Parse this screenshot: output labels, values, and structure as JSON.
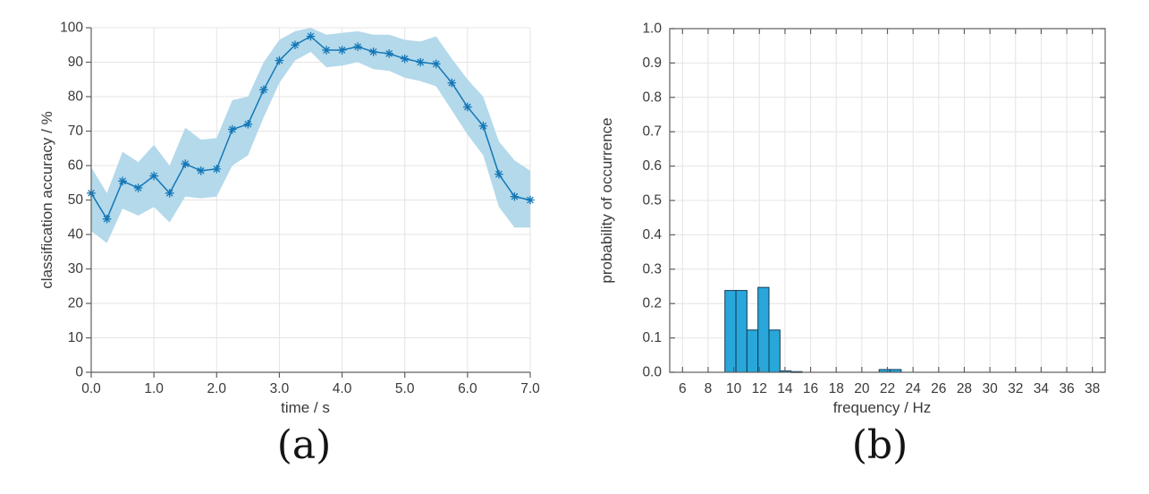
{
  "figure": {
    "background": "#ffffff",
    "captions": {
      "a": "(a)",
      "b": "(b)"
    }
  },
  "theme": {
    "axis_color": "#5f5f5f",
    "grid_color": "#e4e4e4",
    "tick_label_color": "#3a3a3a",
    "axis_label_color": "#3a3a3a"
  },
  "chart_data": [
    {
      "id": "a",
      "type": "line",
      "title": "",
      "xlabel": "time / s",
      "ylabel": "classification accuracy / %",
      "xlim": [
        0,
        7
      ],
      "ylim": [
        0,
        100
      ],
      "grid": true,
      "box": false,
      "marker": "asterisk",
      "line_color": "#1477b6",
      "band_color": "#b3d9eb",
      "xtick_values": [
        0,
        1,
        2,
        3,
        4,
        5,
        6,
        7
      ],
      "xtick_labels": [
        "0.0",
        "1.0",
        "2.0",
        "3.0",
        "4.0",
        "5.0",
        "6.0",
        "7.0"
      ],
      "ytick_values": [
        0,
        10,
        20,
        30,
        40,
        50,
        60,
        70,
        80,
        90,
        100
      ],
      "ytick_labels": [
        "0",
        "10",
        "20",
        "30",
        "40",
        "50",
        "60",
        "70",
        "80",
        "90",
        "100"
      ],
      "x": [
        0,
        0.25,
        0.5,
        0.75,
        1,
        1.25,
        1.5,
        1.75,
        2,
        2.25,
        2.5,
        2.75,
        3,
        3.25,
        3.5,
        3.75,
        4,
        4.25,
        4.5,
        4.75,
        5,
        5.25,
        5.5,
        5.75,
        6,
        6.25,
        6.5,
        6.75,
        7
      ],
      "y": [
        52,
        44.5,
        55.5,
        53.5,
        57,
        52,
        60.5,
        58.5,
        59,
        70.5,
        72,
        82,
        90.5,
        95,
        97.5,
        93.5,
        93.5,
        94.5,
        93,
        92.5,
        91,
        90,
        89.5,
        84,
        77,
        71.5,
        57.5,
        51,
        50
      ],
      "band_upper": [
        59.5,
        52,
        64,
        61,
        66,
        60,
        71,
        67.5,
        68,
        79,
        80,
        90,
        96.5,
        99,
        100,
        98,
        98.5,
        99,
        98,
        98,
        96.5,
        96,
        97.5,
        91,
        85,
        80,
        67,
        61.5,
        58.5
      ],
      "band_lower": [
        41,
        37.5,
        47.5,
        45.5,
        48,
        43.5,
        51,
        50.5,
        51,
        60,
        63,
        74,
        84,
        90.5,
        93,
        88.5,
        89,
        90,
        88,
        87.5,
        85.5,
        84.5,
        83,
        76,
        69,
        63,
        48,
        42,
        42
      ]
    },
    {
      "id": "b",
      "type": "bar",
      "title": "",
      "xlabel": "frequency / Hz",
      "ylabel": "probability of occurrence",
      "xlim": [
        5,
        39
      ],
      "ylim": [
        0,
        1
      ],
      "grid": true,
      "box": true,
      "bar_fill": "#29a7da",
      "bar_edge": "#0e3a55",
      "xtick_values": [
        6,
        8,
        10,
        12,
        14,
        16,
        18,
        20,
        22,
        24,
        26,
        28,
        30,
        32,
        34,
        36,
        38
      ],
      "xtick_labels": [
        "6",
        "8",
        "10",
        "12",
        "14",
        "16",
        "18",
        "20",
        "22",
        "24",
        "26",
        "28",
        "30",
        "32",
        "34",
        "36",
        "38"
      ],
      "ytick_values": [
        0,
        0.1,
        0.2,
        0.3,
        0.4,
        0.5,
        0.6,
        0.7,
        0.8,
        0.9,
        1
      ],
      "ytick_labels": [
        "0.0",
        "0.1",
        "0.2",
        "0.3",
        "0.4",
        "0.5",
        "0.6",
        "0.7",
        "0.8",
        "0.9",
        "1.0"
      ],
      "bars": [
        {
          "x0": 9.31,
          "x1": 10.17,
          "h": 0.238
        },
        {
          "x0": 10.17,
          "x1": 11.03,
          "h": 0.238
        },
        {
          "x0": 11.03,
          "x1": 11.89,
          "h": 0.123
        },
        {
          "x0": 11.89,
          "x1": 12.75,
          "h": 0.247
        },
        {
          "x0": 12.75,
          "x1": 13.61,
          "h": 0.123
        },
        {
          "x0": 13.61,
          "x1": 14.47,
          "h": 0.004
        },
        {
          "x0": 14.47,
          "x1": 15.33,
          "h": 0.002
        },
        {
          "x0": 21.35,
          "x1": 22.21,
          "h": 0.008
        },
        {
          "x0": 22.21,
          "x1": 23.07,
          "h": 0.008
        }
      ]
    }
  ]
}
